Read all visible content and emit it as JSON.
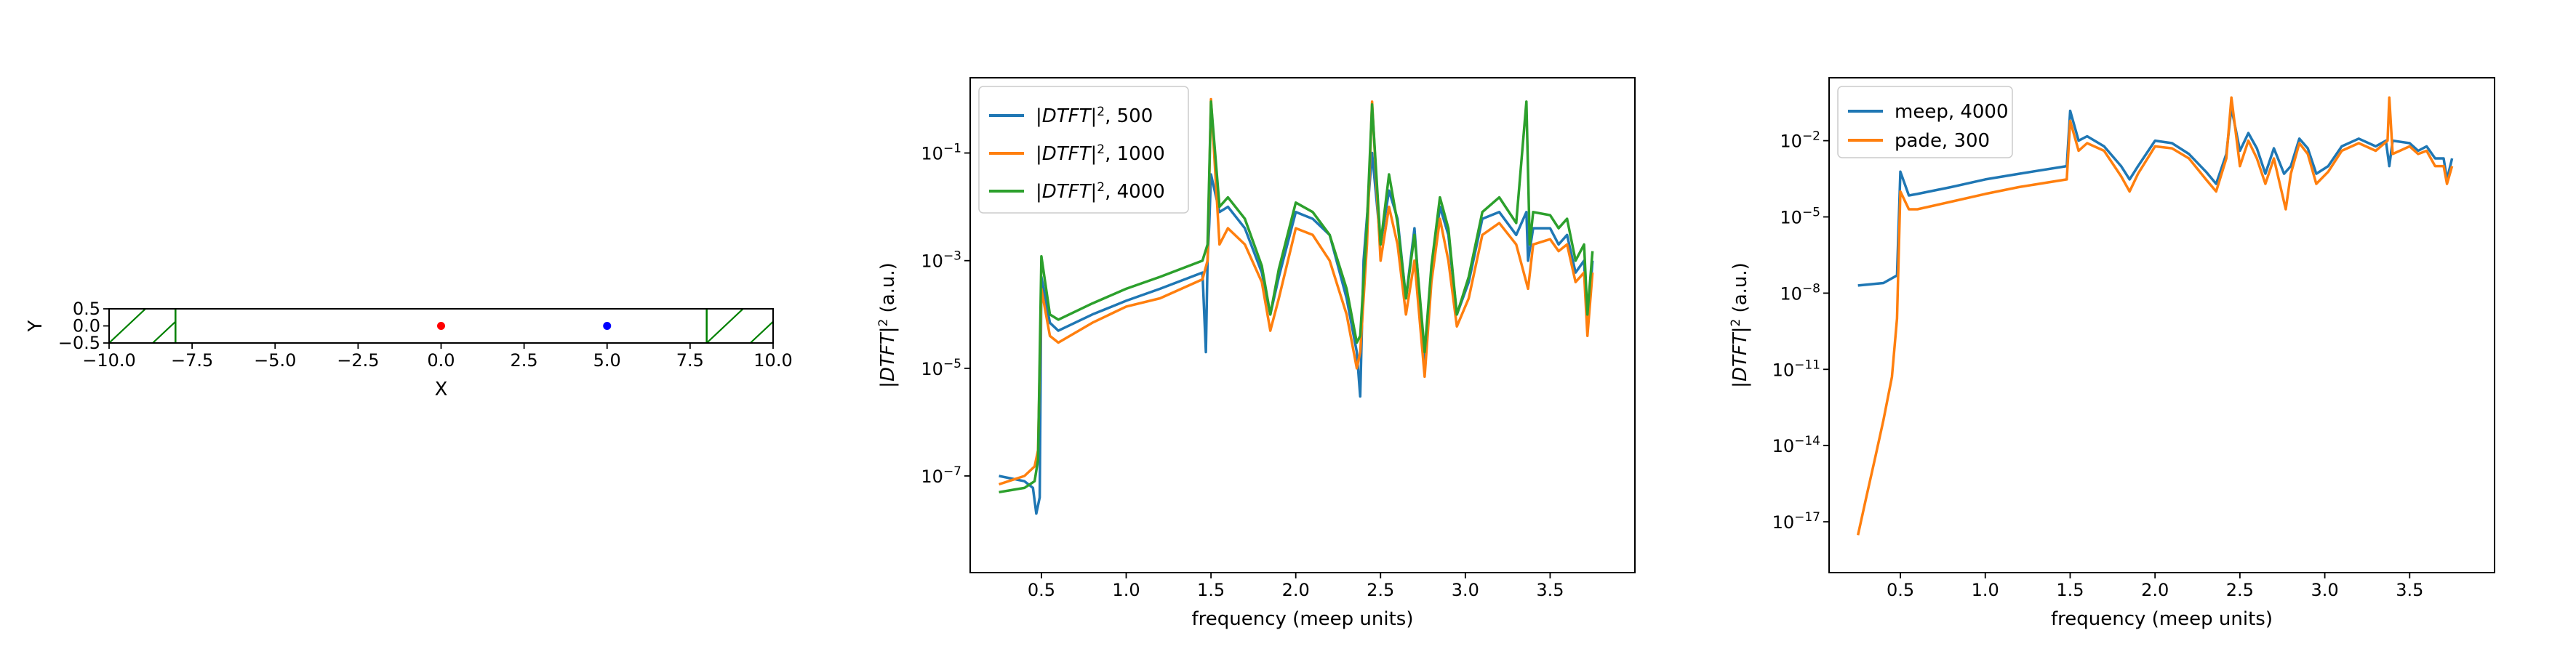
{
  "colors": {
    "blue": "#1f77b4",
    "orange": "#ff7f0e",
    "green": "#2ca02c",
    "red": "#ff0000",
    "dot_blue": "#0000ff",
    "pml_green": "#008000"
  },
  "chart_data": [
    {
      "type": "scatter",
      "xlabel": "X",
      "ylabel": "Y",
      "xlim": [
        -10,
        10
      ],
      "ylim": [
        -0.5,
        0.5
      ],
      "xticks": [
        "−10.0",
        "−7.5",
        "−5.0",
        "−2.5",
        "0.0",
        "2.5",
        "5.0",
        "7.5",
        "10.0"
      ],
      "xtick_values": [
        -10,
        -7.5,
        -5,
        -2.5,
        0,
        2.5,
        5,
        7.5,
        10
      ],
      "yticks": [
        "0.5",
        "0.0",
        "−0.5"
      ],
      "ytick_values": [
        0.5,
        0,
        -0.5
      ],
      "points": [
        {
          "x": 0,
          "y": 0,
          "color": "red"
        },
        {
          "x": 5,
          "y": 0,
          "color": "blue"
        }
      ],
      "boundary_lines": [
        -8,
        8
      ],
      "pml_regions": [
        [
          -10,
          -8
        ],
        [
          8,
          10
        ]
      ],
      "grid": false
    },
    {
      "type": "line",
      "xlabel": "frequency (meep units)",
      "ylabel": "|DTFT|² (a.u.)",
      "yscale": "log",
      "xlim": [
        0.08,
        4.0
      ],
      "ylim": [
        1.6e-09,
        2.5
      ],
      "xticks": [
        "0.5",
        "1.0",
        "1.5",
        "2.0",
        "2.5",
        "3.0",
        "3.5"
      ],
      "xtick_values": [
        0.5,
        1.0,
        1.5,
        2.0,
        2.5,
        3.0,
        3.5
      ],
      "yticks": [
        "10^-7",
        "10^-5",
        "10^-3",
        "10^-1"
      ],
      "ytick_values": [
        1e-07,
        1e-05,
        0.001,
        0.1
      ],
      "legend_position": "top-left",
      "grid": false,
      "series": [
        {
          "name": "|DTFT|², 500",
          "color": "blue",
          "x": [
            0.25,
            0.4,
            0.45,
            0.47,
            0.49,
            0.5,
            0.55,
            0.6,
            0.8,
            1.0,
            1.2,
            1.45,
            1.47,
            1.48,
            1.49,
            1.5,
            1.55,
            1.6,
            1.7,
            1.8,
            1.85,
            1.9,
            2.0,
            2.1,
            2.2,
            2.3,
            2.36,
            2.38,
            2.4,
            2.45,
            2.48,
            2.5,
            2.55,
            2.6,
            2.65,
            2.7,
            2.76,
            2.8,
            2.85,
            2.9,
            2.95,
            3.02,
            3.1,
            3.2,
            3.3,
            3.36,
            3.37,
            3.4,
            3.5,
            3.55,
            3.6,
            3.65,
            3.7,
            3.72,
            3.75
          ],
          "y": [
            1e-07,
            8e-08,
            6e-08,
            2e-08,
            4e-08,
            0.0005,
            7e-05,
            5e-05,
            0.0001,
            0.00018,
            0.0003,
            0.0006,
            2e-05,
            0.001,
            0.005,
            0.04,
            0.008,
            0.01,
            0.004,
            0.0006,
            0.0001,
            0.0005,
            0.008,
            0.006,
            0.003,
            0.0002,
            2e-05,
            3e-06,
            0.001,
            0.1,
            0.01,
            0.002,
            0.02,
            0.006,
            0.0002,
            0.004,
            1e-05,
            0.0006,
            0.01,
            0.003,
            0.0001,
            0.0004,
            0.006,
            0.008,
            0.003,
            0.008,
            0.001,
            0.004,
            0.004,
            0.002,
            0.003,
            0.0006,
            0.001,
            5e-05,
            0.001
          ]
        },
        {
          "name": "|DTFT|², 1000",
          "color": "orange",
          "x": [
            0.25,
            0.4,
            0.46,
            0.48,
            0.5,
            0.55,
            0.6,
            0.8,
            1.0,
            1.2,
            1.45,
            1.48,
            1.5,
            1.55,
            1.6,
            1.7,
            1.8,
            1.85,
            1.9,
            2.0,
            2.1,
            2.2,
            2.3,
            2.36,
            2.38,
            2.42,
            2.45,
            2.5,
            2.55,
            2.6,
            2.65,
            2.7,
            2.76,
            2.8,
            2.85,
            2.9,
            2.95,
            3.02,
            3.1,
            3.2,
            3.3,
            3.37,
            3.4,
            3.5,
            3.55,
            3.6,
            3.65,
            3.7,
            3.72,
            3.75
          ],
          "y": [
            7e-08,
            1e-07,
            1.5e-07,
            3e-07,
            0.0003,
            4e-05,
            3e-05,
            7e-05,
            0.00014,
            0.0002,
            0.00045,
            0.001,
            1.0,
            0.002,
            0.004,
            0.002,
            0.0004,
            5e-05,
            0.0002,
            0.004,
            0.003,
            0.001,
            0.0001,
            1e-05,
            2e-05,
            0.002,
            0.9,
            0.001,
            0.01,
            0.002,
            0.0001,
            0.001,
            7e-06,
            0.0004,
            0.006,
            0.001,
            6e-05,
            0.0002,
            0.003,
            0.005,
            0.002,
            0.0003,
            0.002,
            0.0025,
            0.0015,
            0.002,
            0.0004,
            0.0006,
            4e-05,
            0.0006
          ]
        },
        {
          "name": "|DTFT|², 4000",
          "color": "green",
          "x": [
            0.25,
            0.4,
            0.46,
            0.48,
            0.5,
            0.55,
            0.6,
            0.8,
            1.0,
            1.2,
            1.45,
            1.48,
            1.5,
            1.55,
            1.6,
            1.7,
            1.8,
            1.85,
            1.9,
            2.0,
            2.1,
            2.2,
            2.3,
            2.36,
            2.38,
            2.42,
            2.45,
            2.5,
            2.55,
            2.6,
            2.65,
            2.7,
            2.76,
            2.8,
            2.85,
            2.9,
            2.95,
            3.02,
            3.1,
            3.2,
            3.3,
            3.36,
            3.38,
            3.4,
            3.5,
            3.55,
            3.6,
            3.65,
            3.7,
            3.72,
            3.75
          ],
          "y": [
            5e-08,
            6e-08,
            8e-08,
            2e-07,
            0.0012,
            0.0001,
            8e-05,
            0.00016,
            0.0003,
            0.0005,
            0.001,
            0.002,
            0.9,
            0.01,
            0.015,
            0.006,
            0.0008,
            0.0001,
            0.0007,
            0.012,
            0.008,
            0.003,
            0.0003,
            3e-05,
            4e-05,
            0.005,
            0.8,
            0.002,
            0.04,
            0.005,
            0.0002,
            0.003,
            2e-05,
            0.0008,
            0.015,
            0.004,
            0.0001,
            0.0005,
            0.008,
            0.015,
            0.005,
            0.9,
            0.002,
            0.008,
            0.007,
            0.004,
            0.006,
            0.001,
            0.002,
            0.0001,
            0.0015
          ]
        }
      ]
    },
    {
      "type": "line",
      "xlabel": "frequency (meep units)",
      "ylabel": "|DTFT|² (a.u.)",
      "yscale": "log",
      "xlim": [
        0.08,
        4.0
      ],
      "ylim": [
        1e-19,
        3
      ],
      "xticks": [
        "0.5",
        "1.0",
        "1.5",
        "2.0",
        "2.5",
        "3.0",
        "3.5"
      ],
      "xtick_values": [
        0.5,
        1.0,
        1.5,
        2.0,
        2.5,
        3.0,
        3.5
      ],
      "yticks": [
        "10^-17",
        "10^-14",
        "10^-11",
        "10^-8",
        "10^-5",
        "10^-2"
      ],
      "ytick_values": [
        1e-17,
        1e-14,
        1e-11,
        1e-08,
        1e-05,
        0.01
      ],
      "legend_position": "top-left",
      "grid": false,
      "series": [
        {
          "name": "meep, 4000",
          "color": "blue",
          "x": [
            0.25,
            0.4,
            0.48,
            0.5,
            0.55,
            0.6,
            0.8,
            1.0,
            1.2,
            1.48,
            1.5,
            1.55,
            1.6,
            1.7,
            1.8,
            1.85,
            1.9,
            2.0,
            2.1,
            2.2,
            2.3,
            2.36,
            2.42,
            2.45,
            2.5,
            2.55,
            2.6,
            2.65,
            2.7,
            2.76,
            2.8,
            2.85,
            2.9,
            2.95,
            3.02,
            3.1,
            3.2,
            3.3,
            3.36,
            3.38,
            3.4,
            3.5,
            3.55,
            3.6,
            3.65,
            3.7,
            3.72,
            3.75
          ],
          "y": [
            2e-08,
            2.5e-08,
            5e-08,
            0.0006,
            7e-05,
            8e-05,
            0.00015,
            0.0003,
            0.0005,
            0.001,
            0.15,
            0.01,
            0.015,
            0.006,
            0.001,
            0.0003,
            0.001,
            0.01,
            0.008,
            0.003,
            0.0006,
            0.0002,
            0.003,
            0.2,
            0.004,
            0.02,
            0.005,
            0.0005,
            0.005,
            0.0005,
            0.001,
            0.012,
            0.005,
            0.0005,
            0.001,
            0.006,
            0.012,
            0.006,
            0.01,
            0.001,
            0.01,
            0.008,
            0.004,
            0.006,
            0.002,
            0.002,
            0.0003,
            0.002
          ]
        },
        {
          "name": "pade, 300",
          "color": "orange",
          "x": [
            0.25,
            0.3,
            0.35,
            0.4,
            0.45,
            0.48,
            0.5,
            0.55,
            0.6,
            0.8,
            1.0,
            1.2,
            1.48,
            1.5,
            1.55,
            1.6,
            1.7,
            1.8,
            1.85,
            1.9,
            2.0,
            2.1,
            2.2,
            2.3,
            2.36,
            2.42,
            2.45,
            2.5,
            2.55,
            2.6,
            2.65,
            2.7,
            2.77,
            2.8,
            2.85,
            2.9,
            2.95,
            3.02,
            3.1,
            3.2,
            3.3,
            3.37,
            3.38,
            3.4,
            3.5,
            3.55,
            3.6,
            3.65,
            3.7,
            3.72,
            3.75
          ],
          "y": [
            3e-18,
            1e-16,
            3e-15,
            1e-13,
            5e-12,
            1e-09,
            0.0001,
            2e-05,
            2e-05,
            4e-05,
            8e-05,
            0.00015,
            0.0003,
            0.06,
            0.004,
            0.008,
            0.004,
            0.0004,
            0.0001,
            0.0005,
            0.006,
            0.005,
            0.002,
            0.0003,
            0.0001,
            0.002,
            0.5,
            0.001,
            0.01,
            0.002,
            0.0002,
            0.002,
            2e-05,
            0.0005,
            0.008,
            0.003,
            0.0002,
            0.0006,
            0.004,
            0.008,
            0.004,
            0.01,
            0.5,
            0.003,
            0.006,
            0.003,
            0.004,
            0.001,
            0.001,
            0.0002,
            0.001
          ]
        }
      ]
    }
  ]
}
